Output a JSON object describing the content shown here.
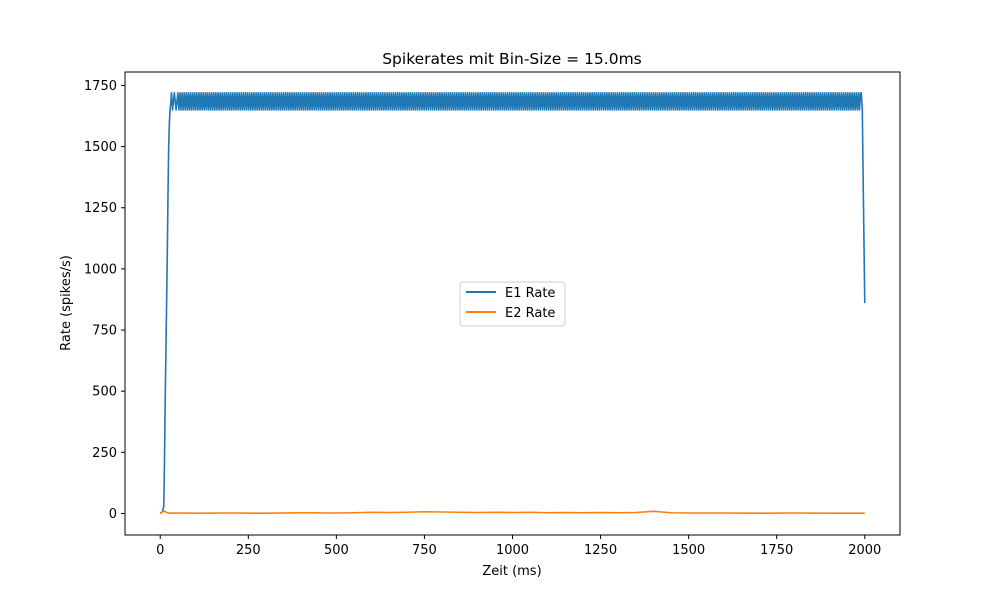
{
  "chart_data": {
    "type": "line",
    "title": "Spikerates mit Bin-Size = 15.0ms",
    "xlabel": "Zeit (ms)",
    "ylabel": "Rate (spikes/s)",
    "xlim": [
      -100,
      2100
    ],
    "ylim": [
      -88,
      1805
    ],
    "xticks": [
      0,
      250,
      500,
      750,
      1000,
      1250,
      1500,
      1750,
      2000
    ],
    "yticks": [
      0,
      250,
      500,
      750,
      1000,
      1250,
      1500,
      1750
    ],
    "legend": {
      "placement": "center"
    },
    "colors": {
      "e1": "#1f77b4",
      "e2": "#ff7f0e"
    },
    "series": [
      {
        "name": "E1 Rate",
        "color": "#1f77b4",
        "x": [
          0,
          5,
          8,
          10,
          12,
          14,
          16,
          18,
          20,
          22,
          24,
          26,
          28,
          30,
          32,
          35,
          40,
          45,
          50,
          1990,
          1993,
          1996,
          2000
        ],
        "y": [
          0,
          5,
          15,
          30,
          200,
          450,
          650,
          850,
          1050,
          1300,
          1500,
          1600,
          1650,
          1680,
          1720,
          1650,
          1720,
          1650,
          1720,
          1720,
          1650,
          1300,
          860
        ],
        "oscillation": {
          "x_start": 50,
          "x_end": 1990,
          "low": 1650,
          "high": 1720
        }
      },
      {
        "name": "E2 Rate",
        "color": "#ff7f0e",
        "x": [
          0,
          10,
          20,
          30,
          50,
          100,
          200,
          300,
          400,
          500,
          550,
          600,
          650,
          700,
          750,
          800,
          850,
          900,
          950,
          1000,
          1050,
          1100,
          1150,
          1200,
          1250,
          1300,
          1350,
          1400,
          1450,
          1500,
          1600,
          1700,
          1800,
          1900,
          2000
        ],
        "y": [
          2,
          10,
          3,
          1,
          2,
          1,
          2,
          1,
          3,
          2,
          3,
          5,
          4,
          5,
          7,
          6,
          5,
          4,
          5,
          4,
          5,
          3,
          4,
          3,
          4,
          3,
          4,
          9,
          3,
          2,
          2,
          1,
          2,
          1,
          1
        ]
      }
    ]
  }
}
